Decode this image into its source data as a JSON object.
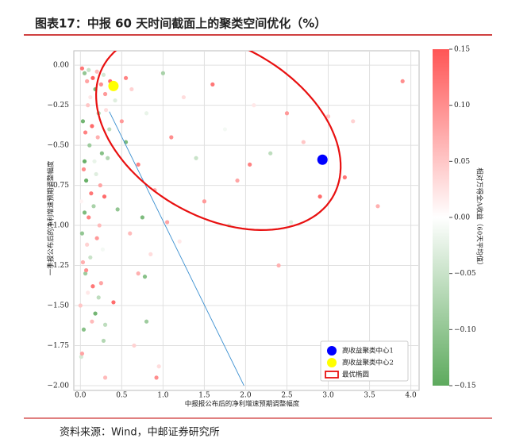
{
  "header": {
    "title": "图表17：中报 60 天时间截面上的聚类空间优化（%）"
  },
  "footer": {
    "source": "资料来源：Wind，中邮证券研究所"
  },
  "chart_data": {
    "type": "scatter",
    "x_label": "中报报公布后的净利增速预期调整幅度",
    "y_label": "一季报公布后的净利增速预期调整幅度",
    "xlim": [
      -0.08,
      4.1
    ],
    "ylim": [
      -2.03,
      0.09
    ],
    "xticks": [
      {
        "value": 0,
        "label": "0.0"
      },
      0.5,
      {
        "value": 1,
        "label": "1.0"
      },
      1.5,
      {
        "value": 2,
        "label": "2.0"
      },
      2.5,
      {
        "value": 3,
        "label": "3.0"
      },
      3.5,
      {
        "value": 4,
        "label": "4.0"
      }
    ],
    "yticks": [
      {
        "value": 0,
        "label": "0.00"
      },
      {
        "value": -0.25,
        "label": "−0.25"
      },
      {
        "value": -0.5,
        "label": "−0.50"
      },
      {
        "value": -0.75,
        "label": "−0.75"
      },
      {
        "value": -1,
        "label": "−1.00"
      },
      {
        "value": -1.25,
        "label": "−1.25"
      },
      {
        "value": -1.5,
        "label": "−1.50"
      },
      {
        "value": -1.75,
        "label": "−1.75"
      },
      {
        "value": -2,
        "label": "−2.00"
      }
    ],
    "grid": true,
    "colorbar": {
      "label": "相对万得全A收益（60天平均值）",
      "lim": [
        -0.15,
        0.15
      ],
      "low_color": "#5daa5d",
      "mid_color": "#ffffff",
      "high_color": "#ff5555",
      "ticks": [
        {
          "value": -0.15,
          "label": "−0.15"
        },
        {
          "value": -0.1,
          "label": "−0.10"
        },
        {
          "value": -0.05,
          "label": "−0.05"
        },
        {
          "value": 0,
          "label": "0.00"
        },
        0.05,
        {
          "value": 0.1,
          "label": "0.10"
        },
        0.15
      ]
    },
    "x": [
      0.02,
      0.05,
      0.08,
      0.1,
      0.12,
      0.15,
      0.18,
      0.2,
      0.22,
      0.25,
      0.28,
      0.3,
      0.03,
      0.06,
      0.09,
      0.11,
      0.14,
      0.17,
      0.21,
      0.26,
      0.31,
      0.35,
      0.04,
      0.07,
      0.13,
      0.19,
      0.24,
      0.33,
      0.01,
      0.05,
      0.1,
      0.16,
      0.23,
      0.29,
      0.02,
      0.08,
      0.12,
      0.2,
      0.27,
      0.03,
      0.06,
      0.15,
      0.22,
      0.0,
      0.04,
      0.09,
      0.18,
      0.25,
      0.01,
      0.07,
      0.14,
      0.28,
      0.36,
      0.42,
      0.5,
      0.55,
      0.62,
      0.7,
      0.8,
      0.9,
      1.0,
      1.1,
      1.25,
      1.4,
      1.6,
      1.75,
      1.9,
      2.1,
      2.3,
      2.5,
      2.7,
      2.9,
      3.3,
      3.6,
      3.9,
      0.45,
      0.6,
      0.75,
      0.85,
      1.05,
      1.2,
      1.5,
      1.8,
      2.05,
      2.4,
      2.55,
      3.0,
      3.2,
      0.3,
      0.92,
      0.05,
      0.02,
      0.8,
      0.78,
      0.4,
      0.65,
      0.7,
      0.3,
      0.55,
      0.95
    ],
    "values": [
      -0.02,
      -0.05,
      -0.1,
      -0.03,
      -0.2,
      -0.08,
      -0.15,
      -0.04,
      -0.3,
      -0.12,
      -0.06,
      -0.18,
      -0.35,
      -0.42,
      -0.25,
      -0.5,
      -0.38,
      -0.6,
      -0.45,
      -0.55,
      -0.28,
      -0.4,
      -0.65,
      -0.72,
      -0.8,
      -0.68,
      -0.75,
      -0.58,
      -0.85,
      -0.92,
      -0.95,
      -0.88,
      -1.0,
      -0.82,
      -1.05,
      -1.12,
      -1.2,
      -1.08,
      -1.15,
      -1.23,
      -1.3,
      -1.38,
      -1.45,
      -1.5,
      -1.65,
      -1.42,
      -1.55,
      -1.36,
      -1.82,
      -1.28,
      -1.6,
      -1.72,
      -0.1,
      -0.22,
      -0.35,
      -0.48,
      -0.15,
      -0.62,
      -0.3,
      -0.78,
      -0.05,
      -0.45,
      -0.2,
      -0.58,
      -0.12,
      -0.4,
      -0.72,
      -0.25,
      -0.55,
      -0.3,
      -0.48,
      -0.82,
      -0.35,
      -0.88,
      -0.1,
      -0.9,
      -1.05,
      -0.95,
      -1.18,
      -0.98,
      -1.1,
      -0.85,
      -1.0,
      -0.62,
      -1.25,
      -0.98,
      -0.32,
      -0.7,
      -1.95,
      -1.95,
      -0.6,
      -1.8,
      -1.6,
      -1.32,
      -1.48,
      -1.75,
      -1.3,
      -1.62,
      -0.08,
      -1.88
    ],
    "color_values": [
      0.12,
      -0.1,
      0.08,
      -0.05,
      0.02,
      0.14,
      -0.12,
      0.06,
      -0.08,
      0.1,
      -0.04,
      0.09,
      -0.13,
      0.11,
      0.05,
      -0.09,
      0.13,
      -0.02,
      0.07,
      -0.11,
      0.03,
      -0.06,
      0.1,
      -0.14,
      0.12,
      -0.03,
      0.08,
      -0.07,
      0.01,
      -0.12,
      0.11,
      -0.08,
      0.06,
      0.13,
      -0.1,
      0.04,
      -0.05,
      0.09,
      -0.01,
      0.07,
      -0.09,
      0.12,
      -0.06,
      0.05,
      -0.11,
      0.02,
      -0.13,
      0.08,
      -0.04,
      0.1,
      0.06,
      -0.07,
      0.13,
      -0.03,
      0.09,
      -0.12,
      0.04,
      0.11,
      -0.02,
      0.07,
      -0.08,
      0.1,
      0.03,
      -0.05,
      0.12,
      -0.01,
      0.08,
      0.02,
      -0.06,
      0.09,
      0.05,
      0.13,
      0.04,
      0.07,
      0.1,
      -0.1,
      0.06,
      -0.12,
      0.03,
      0.08,
      0.02,
      0.09,
      -0.04,
      0.11,
      0.07,
      -0.03,
      0.05,
      0.12,
      0.06,
      0.1,
      -0.14,
      0.08,
      -0.09,
      -0.11,
      0.13,
      0.04,
      0.07,
      -0.06,
      0.11,
      0.03
    ],
    "centers": [
      {
        "name": "高收益聚类中心1",
        "color": "#0000ff",
        "x": 2.93,
        "y": -0.59
      },
      {
        "name": "高收益聚类中心2",
        "color": "#ffff00",
        "x": 0.4,
        "y": -0.13
      }
    ],
    "ellipse": {
      "name": "最优椭圆",
      "color": "#e81010",
      "center": [
        1.67,
        -0.41
      ],
      "width": 3.0,
      "height": 1.14,
      "angle": -10
    },
    "fit_line": {
      "color": "#3a8fd0",
      "x": [
        0.35,
        1.98
      ],
      "y": [
        -0.29,
        -2.0
      ]
    }
  }
}
